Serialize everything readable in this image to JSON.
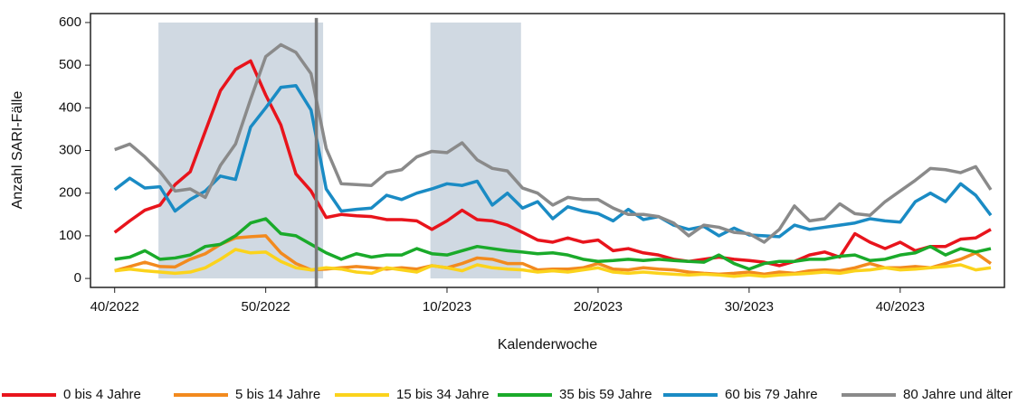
{
  "chart_data": {
    "type": "line",
    "x_label": "Kalenderwoche",
    "y_label": "Anzahl SARI-Fälle",
    "x": [
      0,
      1,
      2,
      3,
      4,
      5,
      6,
      7,
      8,
      9,
      10,
      11,
      12,
      13,
      14,
      15,
      16,
      17,
      18,
      19,
      20,
      21,
      22,
      23,
      24,
      25,
      26,
      27,
      28,
      29,
      30,
      31,
      32,
      33,
      34,
      35,
      36,
      37,
      38,
      39,
      40,
      41,
      42,
      43,
      44,
      45,
      46,
      47,
      48,
      49,
      50,
      51,
      52,
      53,
      54,
      55,
      56,
      57,
      58
    ],
    "xlim": [
      -1.6,
      58.9
    ],
    "xticks": [
      {
        "value": 0,
        "label": "40/2022"
      },
      {
        "value": 10,
        "label": "50/2022"
      },
      {
        "value": 22,
        "label": "10/2023"
      },
      {
        "value": 32,
        "label": "20/2023"
      },
      {
        "value": 42,
        "label": "30/2023"
      },
      {
        "value": 52,
        "label": "40/2023"
      }
    ],
    "ylim": [
      -21,
      621
    ],
    "yticks": [
      0,
      100,
      200,
      300,
      400,
      500,
      600
    ],
    "shaded_ranges": [
      [
        2.9,
        13.8
      ],
      [
        20.9,
        26.9
      ]
    ],
    "shade_color": "#d0d9e2",
    "vline": 13.35,
    "series": [
      {
        "name": "0 bis 4 Jahre",
        "color": "#e8141c",
        "values": [
          108,
          135,
          160,
          172,
          220,
          250,
          345,
          440,
          490,
          510,
          430,
          360,
          245,
          205,
          143,
          150,
          147,
          145,
          138,
          138,
          135,
          115,
          135,
          160,
          138,
          135,
          125,
          108,
          90,
          85,
          95,
          85,
          90,
          65,
          70,
          60,
          55,
          45,
          40,
          45,
          50,
          45,
          42,
          38,
          30,
          40,
          55,
          62,
          50,
          105,
          85,
          70,
          85,
          65,
          75,
          75,
          92,
          95,
          115
        ]
      },
      {
        "name": "5 bis 14 Jahre",
        "color": "#f28a1e",
        "values": [
          18,
          28,
          38,
          28,
          27,
          45,
          58,
          80,
          95,
          98,
          100,
          60,
          35,
          20,
          22,
          25,
          28,
          25,
          22,
          25,
          22,
          30,
          25,
          35,
          48,
          45,
          35,
          35,
          20,
          22,
          22,
          25,
          35,
          22,
          20,
          25,
          22,
          20,
          15,
          12,
          10,
          12,
          15,
          10,
          15,
          12,
          18,
          20,
          18,
          25,
          35,
          25,
          25,
          28,
          25,
          35,
          45,
          60,
          35
        ]
      },
      {
        "name": "15 bis 34 Jahre",
        "color": "#fbd31c",
        "values": [
          18,
          22,
          18,
          15,
          12,
          15,
          25,
          45,
          68,
          60,
          62,
          40,
          25,
          20,
          25,
          22,
          15,
          12,
          25,
          20,
          15,
          30,
          25,
          18,
          32,
          25,
          22,
          20,
          15,
          18,
          15,
          20,
          25,
          15,
          12,
          15,
          12,
          10,
          8,
          10,
          8,
          5,
          8,
          5,
          8,
          10,
          12,
          15,
          12,
          18,
          20,
          25,
          20,
          22,
          25,
          28,
          32,
          20,
          25
        ]
      },
      {
        "name": "35 bis 59 Jahre",
        "color": "#1aaa2a",
        "values": [
          45,
          50,
          65,
          45,
          48,
          55,
          75,
          80,
          100,
          130,
          140,
          105,
          100,
          80,
          60,
          45,
          58,
          50,
          55,
          55,
          70,
          58,
          55,
          65,
          75,
          70,
          65,
          62,
          58,
          60,
          55,
          45,
          40,
          42,
          45,
          42,
          45,
          42,
          40,
          38,
          55,
          35,
          22,
          35,
          40,
          40,
          45,
          45,
          52,
          55,
          42,
          45,
          55,
          60,
          75,
          55,
          70,
          62,
          70
        ]
      },
      {
        "name": "60 bis 79 Jahre",
        "color": "#1a8bc4",
        "values": [
          208,
          235,
          212,
          215,
          158,
          185,
          205,
          240,
          232,
          355,
          400,
          448,
          452,
          395,
          210,
          158,
          162,
          165,
          195,
          185,
          200,
          210,
          222,
          218,
          228,
          172,
          200,
          165,
          180,
          140,
          168,
          158,
          152,
          135,
          162,
          138,
          145,
          125,
          115,
          122,
          100,
          118,
          102,
          100,
          98,
          125,
          115,
          120,
          125,
          130,
          140,
          135,
          132,
          180,
          200,
          180,
          222,
          195,
          148
        ]
      },
      {
        "name": "80 Jahre und älter",
        "color": "#8a8a8a",
        "values": [
          302,
          315,
          285,
          250,
          205,
          210,
          190,
          265,
          315,
          420,
          520,
          548,
          530,
          480,
          305,
          222,
          220,
          218,
          248,
          255,
          285,
          298,
          295,
          318,
          278,
          258,
          252,
          212,
          200,
          172,
          190,
          185,
          185,
          165,
          150,
          150,
          145,
          130,
          100,
          125,
          120,
          108,
          105,
          85,
          115,
          170,
          135,
          140,
          175,
          152,
          148,
          180,
          205,
          230,
          258,
          255,
          248,
          262,
          208
        ]
      }
    ]
  }
}
